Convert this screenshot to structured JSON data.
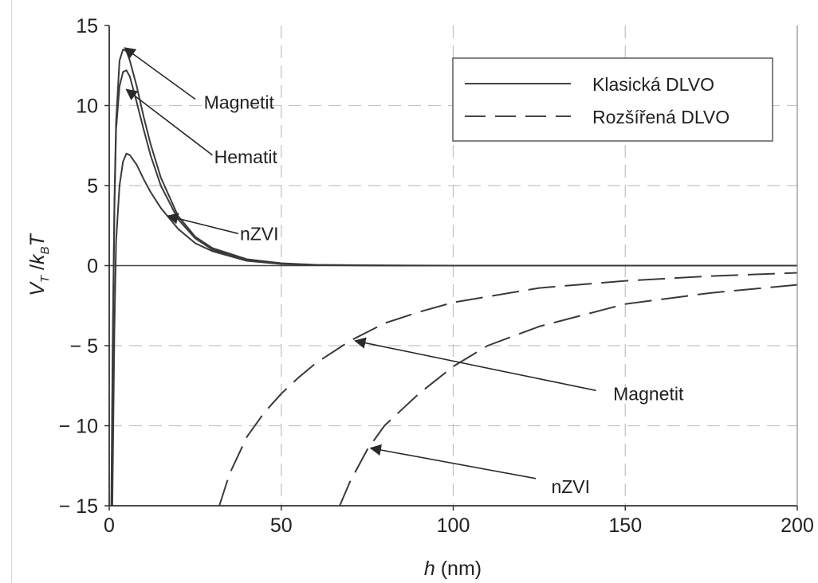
{
  "chart_data": {
    "type": "line",
    "title": "",
    "xlabel": {
      "var": "h",
      "unit": " (nm)"
    },
    "ylabel": {
      "v": "V",
      "v_sub": "T",
      "slash": " /",
      "k": "k",
      "k_sub": "B",
      "t": "T"
    },
    "xlim": [
      0,
      200
    ],
    "ylim": [
      -15,
      15
    ],
    "xticks": [
      0,
      50,
      100,
      150,
      200
    ],
    "xtick_labels": [
      "0",
      "50",
      "100",
      "150",
      "200"
    ],
    "yticks": [
      15,
      10,
      5,
      0,
      -5,
      -10,
      -15
    ],
    "ytick_labels": [
      "15",
      "10",
      "5",
      "0",
      "− 5",
      "− 10",
      "− 15"
    ],
    "grid": true,
    "legend_position": "top-right",
    "legend": [
      {
        "label": "Klasická DLVO",
        "style": "solid"
      },
      {
        "label": "Rozšířená DLVO",
        "style": "dashed"
      }
    ],
    "series": [
      {
        "style": "solid",
        "x": [
          0.6,
          1,
          1.5,
          2,
          3,
          4,
          5,
          6,
          8,
          10,
          12,
          15,
          20,
          25,
          30,
          40,
          50,
          60,
          80,
          100,
          140,
          200
        ],
        "y": [
          -15,
          -5,
          4,
          9,
          12.8,
          13.5,
          13.4,
          12.8,
          11.2,
          9.3,
          7.6,
          5.5,
          3.1,
          1.8,
          1.1,
          0.4,
          0.15,
          0.05,
          0.01,
          0,
          0,
          0
        ]
      },
      {
        "style": "solid",
        "x": [
          0.7,
          1,
          1.5,
          2,
          3,
          4,
          5,
          6,
          8,
          10,
          12,
          15,
          20,
          25,
          30,
          40,
          50,
          60,
          80,
          100,
          140,
          200
        ],
        "y": [
          -15,
          -6,
          3.5,
          8.5,
          11.2,
          12.1,
          12.2,
          11.8,
          10.2,
          8.5,
          6.9,
          5,
          2.9,
          1.7,
          1,
          0.35,
          0.12,
          0.04,
          0.01,
          0,
          0,
          0
        ]
      },
      {
        "style": "solid",
        "x": [
          0.9,
          1.5,
          2,
          3,
          4,
          5,
          6,
          8,
          10,
          12,
          15,
          20,
          25,
          30,
          40,
          50,
          60,
          80,
          100,
          140,
          200
        ],
        "y": [
          -15,
          -4,
          1.5,
          5,
          6.5,
          7,
          6.9,
          6.3,
          5.4,
          4.6,
          3.6,
          2.3,
          1.4,
          0.9,
          0.3,
          0.1,
          0.03,
          0,
          0,
          0,
          0
        ]
      },
      {
        "style": "dashed",
        "x": [
          32,
          35,
          40,
          45,
          50,
          55,
          60,
          70,
          80,
          90,
          100,
          125,
          150,
          175,
          200
        ],
        "y": [
          -15,
          -13,
          -10.7,
          -9.2,
          -8,
          -7,
          -6.1,
          -4.7,
          -3.6,
          -2.9,
          -2.3,
          -1.4,
          -0.95,
          -0.65,
          -0.45
        ]
      },
      {
        "style": "dashed",
        "x": [
          67,
          70,
          75,
          80,
          90,
          100,
          110,
          125,
          150,
          175,
          200
        ],
        "y": [
          -15,
          -13.5,
          -11.5,
          -10,
          -8,
          -6.3,
          -5,
          -3.8,
          -2.4,
          -1.7,
          -1.2
        ]
      }
    ],
    "annotations": [
      {
        "text": "Magnetit",
        "label_x": 27.5,
        "label_y": 10.2,
        "arrow_tail": [
          25,
          10.4
        ],
        "arrow_head": [
          4.5,
          13.6
        ],
        "anchor": "start"
      },
      {
        "text": "Hematit",
        "label_x": 30.5,
        "label_y": 6.8,
        "arrow_tail": [
          30,
          6.9
        ],
        "arrow_head": [
          5,
          11
        ],
        "anchor": "start"
      },
      {
        "text": "nZVI",
        "label_x": 38,
        "label_y": 2,
        "arrow_tail": [
          37.5,
          2
        ],
        "arrow_head": [
          17,
          3.1
        ],
        "anchor": "start"
      },
      {
        "text": "Magnetit",
        "label_x": 146.5,
        "label_y": -8,
        "arrow_tail": [
          141.5,
          -7.8
        ],
        "arrow_head": [
          71.5,
          -4.7
        ],
        "anchor": "start"
      },
      {
        "text": "nZVI",
        "label_x": 128.5,
        "label_y": -13.8,
        "arrow_tail": [
          124,
          -13.3
        ],
        "arrow_head": [
          76,
          -11.4
        ],
        "anchor": "start"
      }
    ]
  }
}
